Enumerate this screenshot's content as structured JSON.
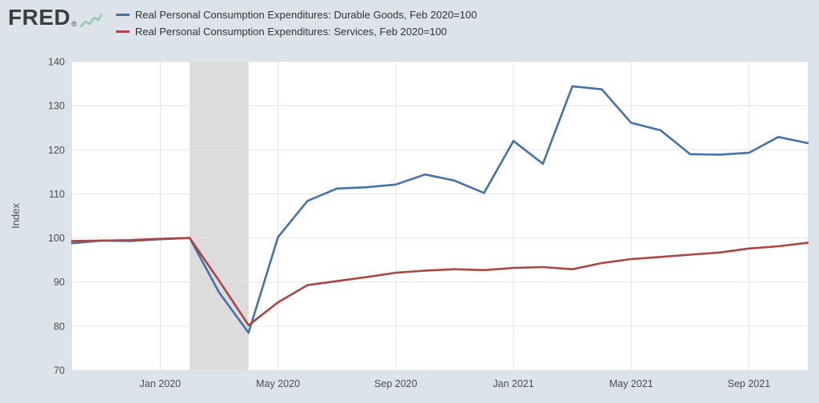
{
  "header": {
    "logo_text": "FRED",
    "logo_registered": "®"
  },
  "chart_data": {
    "type": "line",
    "title": "",
    "ylabel": "Index",
    "ylim": [
      70,
      140
    ],
    "y_ticks": [
      70,
      80,
      90,
      100,
      110,
      120,
      130,
      140
    ],
    "x": [
      "Oct 2019",
      "Nov 2019",
      "Dec 2019",
      "Jan 2020",
      "Feb 2020",
      "Mar 2020",
      "Apr 2020",
      "May 2020",
      "Jun 2020",
      "Jul 2020",
      "Aug 2020",
      "Sep 2020",
      "Oct 2020",
      "Nov 2020",
      "Dec 2020",
      "Jan 2021",
      "Feb 2021",
      "Mar 2021",
      "Apr 2021",
      "May 2021",
      "Jun 2021",
      "Jul 2021",
      "Aug 2021",
      "Sep 2021",
      "Oct 2021",
      "Nov 2021"
    ],
    "x_tick_labels": [
      "Jan 2020",
      "May 2020",
      "Sep 2020",
      "Jan 2021",
      "May 2021",
      "Sep 2021"
    ],
    "x_tick_month_indices": [
      3,
      7,
      11,
      15,
      19,
      23
    ],
    "grid": true,
    "grid_color": "#e4e4e4",
    "legend_position": "top",
    "recession_band": {
      "start_month_index": 4,
      "end_month_index": 6,
      "color": "#dcdcdc"
    },
    "series": [
      {
        "name": "Real Personal Consumption Expenditures: Durable Goods, Feb 2020=100",
        "color": "#4572a7",
        "values": [
          98.8,
          99.4,
          99.3,
          99.7,
          100.0,
          87.6,
          78.5,
          100.2,
          108.4,
          111.2,
          111.5,
          112.1,
          114.4,
          113.0,
          110.2,
          122.0,
          116.8,
          134.4,
          133.7,
          126.1,
          124.4,
          119.0,
          118.9,
          119.3,
          122.9,
          121.5
        ]
      },
      {
        "name": "Real Personal Consumption Expenditures: Services, Feb 2020=100",
        "color": "#aa4643",
        "values": [
          99.3,
          99.4,
          99.5,
          99.8,
          100.0,
          90.3,
          80.2,
          85.4,
          89.3,
          90.2,
          91.1,
          92.1,
          92.6,
          92.9,
          92.7,
          93.2,
          93.4,
          92.9,
          94.3,
          95.2,
          95.7,
          96.2,
          96.7,
          97.6,
          98.1,
          98.9
        ]
      }
    ]
  }
}
